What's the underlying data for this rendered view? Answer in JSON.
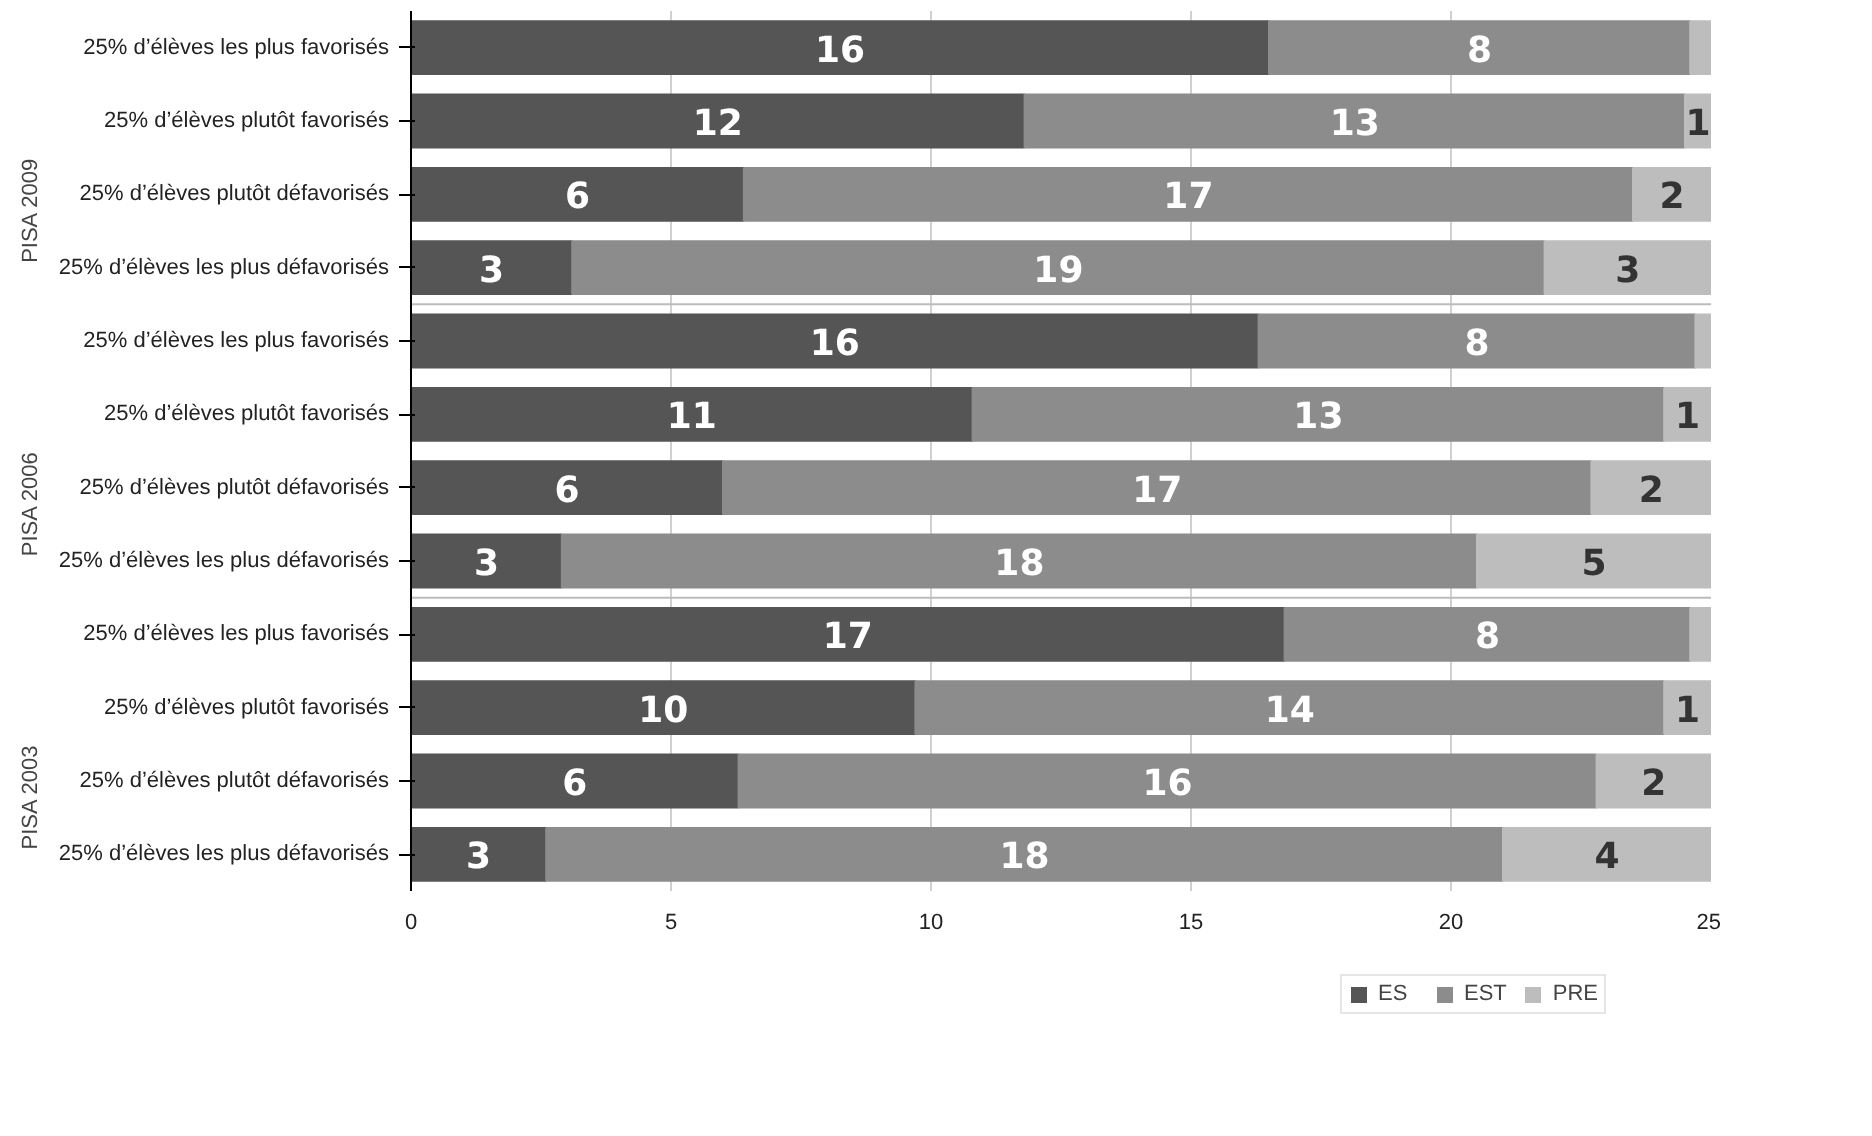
{
  "chart_data": {
    "type": "bar",
    "orientation": "horizontal",
    "stacked": true,
    "categories": [
      "25% d’élèves les plus favorisés",
      "25% d’élèves plutôt favorisés",
      "25% d’élèves plutôt défavorisés",
      "25% d’élèves les plus défavorisés",
      "25% d’élèves les plus favorisés",
      "25% d’élèves plutôt favorisés",
      "25% d’élèves plutôt défavorisés",
      "25% d’élèves les plus défavorisés",
      "25% d’élèves les plus favorisés",
      "25% d’élèves plutôt favorisés",
      "25% d’élèves plutôt défavorisés",
      "25% d’élèves les plus défavorisés"
    ],
    "annotations": [
      "PISA 2009",
      "PISA 2006",
      "PISA 2003"
    ],
    "series": [
      {
        "name": "ES",
        "color": "#555555",
        "values": [
          16.5,
          11.8,
          6.4,
          3.1,
          16.3,
          10.8,
          6.0,
          2.9,
          16.8,
          9.7,
          6.3,
          2.6
        ],
        "value_labels": [
          "16",
          "12",
          "6",
          "3",
          "16",
          "11",
          "6",
          "3",
          "17",
          "10",
          "6",
          "3"
        ]
      },
      {
        "name": "EST",
        "color": "#8c8c8c",
        "values": [
          8.1,
          12.7,
          17.1,
          18.7,
          8.4,
          13.3,
          16.7,
          17.6,
          7.8,
          14.4,
          16.5,
          18.4
        ],
        "value_labels": [
          "8",
          "13",
          "17",
          "19",
          "8",
          "13",
          "17",
          "18",
          "8",
          "14",
          "16",
          "18"
        ]
      },
      {
        "name": "PRE",
        "color": "#bdbdbd",
        "values": [
          0.4,
          0.5,
          1.5,
          3.2,
          0.3,
          0.9,
          2.3,
          4.5,
          0.4,
          0.9,
          2.2,
          4.0
        ],
        "value_labels": [
          null,
          "1",
          "2",
          "3",
          null,
          "1",
          "2",
          "5",
          null,
          "1",
          "2",
          "4"
        ]
      }
    ],
    "xlim": [
      0,
      25
    ],
    "xticks": [
      0,
      5,
      10,
      15,
      20,
      25
    ],
    "grid": "x",
    "legend": "bottom"
  }
}
